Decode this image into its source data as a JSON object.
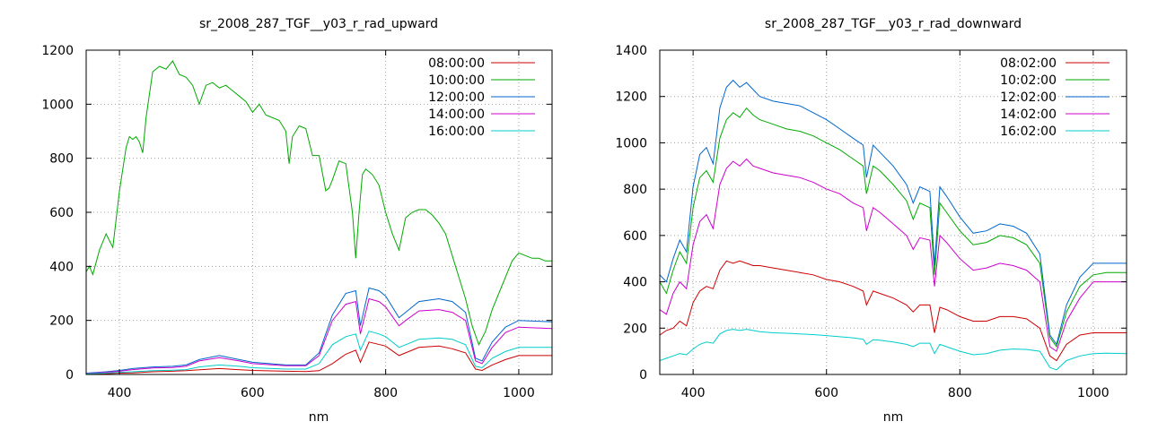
{
  "chart_data": [
    {
      "type": "line",
      "title": "sr_2008_287_TGF__y03_r_rad_upward",
      "xlabel": "nm",
      "ylabel": "",
      "xlim": [
        350,
        1050
      ],
      "ylim": [
        0,
        1200
      ],
      "xticks": [
        400,
        600,
        800,
        1000
      ],
      "yticks": [
        0,
        200,
        400,
        600,
        800,
        1000,
        1200
      ],
      "grid": true,
      "legend_position": "top-right",
      "series": [
        {
          "name": "08:00:00",
          "color": "#cc0000",
          "x": [
            350,
            380,
            400,
            420,
            450,
            480,
            500,
            550,
            600,
            650,
            680,
            700,
            720,
            740,
            755,
            762,
            775,
            800,
            820,
            850,
            880,
            900,
            920,
            935,
            945,
            960,
            980,
            1000,
            1050
          ],
          "y": [
            2,
            3,
            5,
            6,
            10,
            12,
            14,
            22,
            15,
            12,
            11,
            14,
            40,
            75,
            90,
            45,
            120,
            105,
            70,
            100,
            105,
            95,
            80,
            20,
            15,
            35,
            55,
            70,
            70
          ]
        },
        {
          "name": "10:00:00",
          "color": "#00aa00",
          "x": [
            350,
            355,
            360,
            370,
            380,
            390,
            400,
            410,
            415,
            420,
            425,
            430,
            435,
            440,
            450,
            460,
            470,
            480,
            490,
            500,
            510,
            520,
            530,
            540,
            550,
            560,
            570,
            580,
            590,
            600,
            610,
            620,
            630,
            640,
            650,
            655,
            660,
            670,
            680,
            690,
            700,
            710,
            715,
            720,
            730,
            740,
            750,
            755,
            760,
            765,
            770,
            780,
            790,
            800,
            810,
            820,
            830,
            840,
            850,
            860,
            870,
            880,
            890,
            900,
            910,
            920,
            930,
            940,
            950,
            960,
            970,
            980,
            990,
            1000,
            1010,
            1020,
            1030,
            1040,
            1050
          ],
          "y": [
            380,
            400,
            370,
            460,
            520,
            470,
            680,
            840,
            880,
            870,
            880,
            860,
            820,
            950,
            1120,
            1140,
            1130,
            1160,
            1110,
            1100,
            1070,
            1000,
            1070,
            1080,
            1060,
            1070,
            1050,
            1030,
            1010,
            970,
            1000,
            960,
            950,
            940,
            900,
            780,
            880,
            920,
            910,
            810,
            810,
            680,
            690,
            720,
            790,
            780,
            600,
            430,
            600,
            740,
            760,
            740,
            700,
            600,
            520,
            460,
            580,
            600,
            610,
            610,
            590,
            560,
            520,
            440,
            360,
            280,
            180,
            110,
            160,
            240,
            300,
            360,
            420,
            450,
            440,
            430,
            430,
            420,
            420
          ]
        },
        {
          "name": "12:00:00",
          "color": "#0066cc",
          "x": [
            350,
            380,
            400,
            420,
            450,
            480,
            500,
            520,
            550,
            580,
            600,
            650,
            680,
            700,
            720,
            740,
            755,
            762,
            775,
            790,
            800,
            820,
            830,
            850,
            880,
            900,
            920,
            935,
            945,
            960,
            980,
            1000,
            1050
          ],
          "y": [
            5,
            10,
            15,
            22,
            28,
            30,
            35,
            55,
            70,
            55,
            45,
            35,
            35,
            80,
            220,
            300,
            310,
            180,
            320,
            310,
            290,
            210,
            230,
            270,
            280,
            270,
            230,
            60,
            50,
            120,
            175,
            200,
            195
          ]
        },
        {
          "name": "14:00:00",
          "color": "#cc00cc",
          "x": [
            350,
            380,
            400,
            420,
            450,
            480,
            500,
            520,
            550,
            580,
            600,
            650,
            680,
            700,
            720,
            740,
            755,
            762,
            775,
            790,
            800,
            820,
            830,
            850,
            880,
            900,
            920,
            935,
            945,
            960,
            980,
            1000,
            1050
          ],
          "y": [
            4,
            8,
            12,
            18,
            24,
            26,
            30,
            50,
            62,
            50,
            40,
            32,
            32,
            70,
            200,
            260,
            270,
            150,
            280,
            270,
            250,
            180,
            200,
            235,
            240,
            230,
            200,
            50,
            40,
            100,
            155,
            175,
            170
          ]
        },
        {
          "name": "16:00:00",
          "color": "#00cccc",
          "x": [
            350,
            380,
            400,
            420,
            450,
            480,
            500,
            520,
            550,
            580,
            600,
            650,
            680,
            700,
            720,
            740,
            755,
            762,
            775,
            790,
            800,
            820,
            830,
            850,
            880,
            900,
            920,
            935,
            945,
            960,
            980,
            1000,
            1050
          ],
          "y": [
            3,
            5,
            8,
            10,
            14,
            16,
            18,
            28,
            35,
            30,
            25,
            20,
            20,
            40,
            110,
            140,
            150,
            90,
            160,
            150,
            140,
            100,
            110,
            130,
            135,
            130,
            110,
            30,
            25,
            60,
            85,
            100,
            100
          ]
        }
      ]
    },
    {
      "type": "line",
      "title": "sr_2008_287_TGF__y03_r_rad_downward",
      "xlabel": "nm",
      "ylabel": "",
      "xlim": [
        350,
        1050
      ],
      "ylim": [
        0,
        1400
      ],
      "xticks": [
        400,
        600,
        800,
        1000
      ],
      "yticks": [
        0,
        200,
        400,
        600,
        800,
        1000,
        1200,
        1400
      ],
      "grid": true,
      "legend_position": "top-right",
      "series": [
        {
          "name": "08:02:00",
          "color": "#cc0000",
          "x": [
            350,
            360,
            370,
            380,
            390,
            400,
            410,
            420,
            430,
            440,
            450,
            460,
            470,
            480,
            490,
            500,
            520,
            540,
            560,
            580,
            600,
            620,
            640,
            655,
            660,
            670,
            680,
            700,
            720,
            730,
            740,
            755,
            762,
            770,
            780,
            800,
            820,
            840,
            860,
            880,
            900,
            920,
            935,
            945,
            960,
            980,
            1000,
            1020,
            1050
          ],
          "y": [
            170,
            190,
            200,
            230,
            210,
            310,
            360,
            380,
            370,
            450,
            490,
            480,
            490,
            480,
            470,
            470,
            460,
            450,
            440,
            430,
            410,
            400,
            380,
            360,
            300,
            360,
            350,
            330,
            300,
            270,
            300,
            300,
            180,
            290,
            280,
            250,
            230,
            230,
            250,
            250,
            240,
            200,
            80,
            60,
            130,
            170,
            180,
            180,
            180
          ]
        },
        {
          "name": "10:02:00",
          "color": "#00aa00",
          "x": [
            350,
            360,
            370,
            380,
            390,
            400,
            410,
            420,
            430,
            440,
            450,
            460,
            470,
            480,
            490,
            500,
            520,
            540,
            560,
            580,
            600,
            620,
            640,
            655,
            660,
            670,
            680,
            700,
            720,
            730,
            740,
            755,
            762,
            770,
            780,
            800,
            820,
            840,
            860,
            880,
            900,
            920,
            935,
            945,
            960,
            980,
            1000,
            1020,
            1050
          ],
          "y": [
            400,
            350,
            450,
            530,
            480,
            720,
            850,
            880,
            830,
            1020,
            1100,
            1130,
            1110,
            1150,
            1120,
            1100,
            1080,
            1060,
            1050,
            1030,
            1000,
            970,
            930,
            900,
            780,
            900,
            880,
            820,
            750,
            670,
            740,
            720,
            430,
            740,
            700,
            620,
            560,
            570,
            600,
            590,
            560,
            480,
            160,
            120,
            270,
            380,
            430,
            440,
            440
          ]
        },
        {
          "name": "12:02:00",
          "color": "#0066cc",
          "x": [
            350,
            360,
            370,
            380,
            390,
            400,
            410,
            420,
            430,
            440,
            450,
            460,
            470,
            480,
            490,
            500,
            520,
            540,
            560,
            580,
            600,
            620,
            640,
            655,
            660,
            670,
            680,
            700,
            720,
            730,
            740,
            755,
            762,
            770,
            780,
            800,
            820,
            840,
            860,
            880,
            900,
            920,
            935,
            945,
            960,
            980,
            1000,
            1020,
            1050
          ],
          "y": [
            430,
            400,
            500,
            580,
            530,
            810,
            950,
            980,
            910,
            1150,
            1240,
            1270,
            1240,
            1260,
            1230,
            1200,
            1180,
            1170,
            1160,
            1130,
            1100,
            1060,
            1020,
            990,
            850,
            990,
            960,
            900,
            820,
            740,
            810,
            790,
            470,
            810,
            770,
            680,
            610,
            620,
            650,
            640,
            610,
            520,
            170,
            130,
            300,
            420,
            480,
            480,
            480
          ]
        },
        {
          "name": "14:02:00",
          "color": "#cc00cc",
          "x": [
            350,
            360,
            370,
            380,
            390,
            400,
            410,
            420,
            430,
            440,
            450,
            460,
            470,
            480,
            490,
            500,
            520,
            540,
            560,
            580,
            600,
            620,
            640,
            655,
            660,
            670,
            680,
            700,
            720,
            730,
            740,
            755,
            762,
            770,
            780,
            800,
            820,
            840,
            860,
            880,
            900,
            920,
            935,
            945,
            960,
            980,
            1000,
            1020,
            1050
          ],
          "y": [
            280,
            260,
            350,
            400,
            370,
            560,
            660,
            690,
            630,
            820,
            890,
            920,
            900,
            930,
            900,
            890,
            870,
            860,
            850,
            830,
            800,
            780,
            740,
            720,
            620,
            720,
            700,
            650,
            600,
            540,
            590,
            580,
            380,
            600,
            570,
            500,
            450,
            460,
            480,
            470,
            450,
            400,
            120,
            100,
            230,
            330,
            400,
            400,
            400
          ]
        },
        {
          "name": "16:02:00",
          "color": "#00cccc",
          "x": [
            350,
            360,
            370,
            380,
            390,
            400,
            410,
            420,
            430,
            440,
            450,
            460,
            470,
            480,
            490,
            500,
            520,
            540,
            560,
            580,
            600,
            620,
            640,
            655,
            660,
            670,
            680,
            700,
            720,
            730,
            740,
            755,
            762,
            770,
            780,
            800,
            820,
            840,
            860,
            880,
            900,
            920,
            935,
            945,
            960,
            980,
            1000,
            1020,
            1050
          ],
          "y": [
            60,
            70,
            80,
            90,
            85,
            110,
            130,
            140,
            135,
            175,
            190,
            195,
            190,
            195,
            190,
            185,
            180,
            178,
            175,
            172,
            168,
            163,
            158,
            152,
            130,
            150,
            148,
            140,
            130,
            120,
            135,
            135,
            90,
            130,
            120,
            100,
            85,
            90,
            105,
            110,
            108,
            100,
            30,
            20,
            60,
            80,
            90,
            92,
            90
          ]
        }
      ]
    }
  ]
}
